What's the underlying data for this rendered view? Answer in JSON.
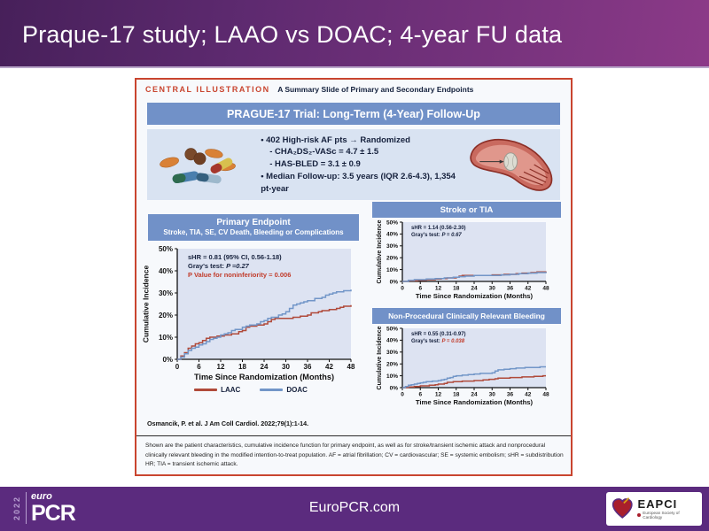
{
  "slide": {
    "title": "Praque-17 study; LAAO vs DOAC; 4-year FU data"
  },
  "central": {
    "label": "CENTRAL ILLUSTRATION",
    "label_suffix": "A Summary Slide of Primary and Secondary Endpoints",
    "main_header": "PRAGUE-17 Trial: Long-Term (4-Year) Follow-Up",
    "bullets": {
      "b1": "• 402 High-risk AF pts → Randomized",
      "b1a": "- CHA₂DS₂-VASc = 4.7 ± 1.5",
      "b1b": "- HAS-BLED = 3.1 ± 0.9",
      "b2": "• Median Follow-up: 3.5  years (IQR 2.6-4.3), 1,354 pt-year"
    },
    "citation": "Osmancik, P. et al. J Am Coll Cardiol. 2022;79(1):1-14.",
    "caption": "Shown are the patient characteristics, cumulative incidence function for primary endpoint, as well as for stroke/transient ischemic attack and nonprocedural clinically relevant bleeding in the modified intention-to-treat population. AF = atrial fibrillation; CV = cardiovascular; SE = systemic embolism; sHR = subdistribution HR; TIA = transient ischemic attack."
  },
  "footer": {
    "year": "2022",
    "logo_top": "euro",
    "logo_main": "PCR",
    "site": "EuroPCR.com",
    "eapci": "EAPCI",
    "eapci_sub": "European Society of Cardiology"
  },
  "colors": {
    "laac": "#b04a3a",
    "doac": "#7296c8",
    "header_bar": "#7191c8",
    "stat_red": "#c13b2a",
    "box_border": "#c9452f",
    "plot_bg": "#dde3f2"
  },
  "chart_data": [
    {
      "id": "primary-endpoint",
      "type": "line",
      "title": "Primary Endpoint",
      "subtitle": "Stroke, TIA, SE, CV Death, Bleeding or Complications",
      "stats": {
        "line1": "sHR = 0.81 (95% CI, 0.56-1.18)",
        "line2_prefix": "Gray's test: ",
        "line2_value": "P =0.27",
        "line3": "P Value for noninferiority = 0.006"
      },
      "xlabel": "Time Since Randomization (Months)",
      "ylabel": "Cumulative Incidence",
      "xlim": [
        0,
        48
      ],
      "ylim": [
        0,
        50
      ],
      "xticks": [
        0,
        6,
        12,
        18,
        24,
        30,
        36,
        42,
        48
      ],
      "yticks": [
        0,
        10,
        20,
        30,
        40,
        50
      ],
      "ytick_suffix": "%",
      "bg": "#dde3f2",
      "legend_position": "bottom",
      "series": [
        {
          "name": "LAAC",
          "color": "#b04a3a",
          "points": [
            [
              0,
              0
            ],
            [
              1,
              1.5
            ],
            [
              2,
              3
            ],
            [
              3,
              5
            ],
            [
              4,
              6
            ],
            [
              5,
              7
            ],
            [
              6,
              7.5
            ],
            [
              7,
              8.5
            ],
            [
              8,
              9.5
            ],
            [
              9,
              10
            ],
            [
              11,
              10.5
            ],
            [
              13,
              11
            ],
            [
              15,
              11.5
            ],
            [
              17,
              12.5
            ],
            [
              18,
              13
            ],
            [
              19,
              14.5
            ],
            [
              20,
              15
            ],
            [
              22,
              15.5
            ],
            [
              24,
              16
            ],
            [
              25,
              17
            ],
            [
              26,
              18
            ],
            [
              27,
              18.5
            ],
            [
              30,
              18.5
            ],
            [
              32,
              19
            ],
            [
              34,
              19.5
            ],
            [
              36,
              20
            ],
            [
              37,
              21
            ],
            [
              39,
              21.5
            ],
            [
              40,
              22
            ],
            [
              42,
              22.5
            ],
            [
              44,
              23
            ],
            [
              45,
              23.5
            ],
            [
              46,
              24
            ],
            [
              48,
              24.5
            ]
          ]
        },
        {
          "name": "DOAC",
          "color": "#7296c8",
          "points": [
            [
              0,
              0
            ],
            [
              1,
              1
            ],
            [
              2,
              2.5
            ],
            [
              3,
              4
            ],
            [
              4,
              5
            ],
            [
              5,
              5.5
            ],
            [
              6,
              6.5
            ],
            [
              7,
              7
            ],
            [
              8,
              8
            ],
            [
              9,
              9
            ],
            [
              10,
              9.5
            ],
            [
              11,
              10
            ],
            [
              12,
              11
            ],
            [
              13,
              11.5
            ],
            [
              14,
              12
            ],
            [
              15,
              13
            ],
            [
              16,
              13.5
            ],
            [
              18,
              14.5
            ],
            [
              19,
              15
            ],
            [
              20,
              15.5
            ],
            [
              22,
              16
            ],
            [
              23,
              17
            ],
            [
              24,
              17.5
            ],
            [
              25,
              18.5
            ],
            [
              26,
              19
            ],
            [
              28,
              20
            ],
            [
              29,
              20.5
            ],
            [
              30,
              21.5
            ],
            [
              31,
              23
            ],
            [
              32,
              24.5
            ],
            [
              33,
              25
            ],
            [
              34,
              25.5
            ],
            [
              35,
              26
            ],
            [
              36,
              26.5
            ],
            [
              38,
              27.5
            ],
            [
              40,
              28
            ],
            [
              41,
              29
            ],
            [
              42,
              29.5
            ],
            [
              43,
              30
            ],
            [
              44,
              30.5
            ],
            [
              46,
              31
            ],
            [
              48,
              31.5
            ]
          ]
        }
      ]
    },
    {
      "id": "stroke-or-tia",
      "type": "line",
      "title": "Stroke or TIA",
      "stats": {
        "line1": "sHR = 1.14 (0.56-2.30)",
        "line2_prefix": "Gray's test: ",
        "line2_value": "P = 0.67"
      },
      "xlabel": "Time Since Randomization (Months)",
      "ylabel": "Cumulative Incidence",
      "xlim": [
        0,
        48
      ],
      "ylim": [
        0,
        50
      ],
      "xticks": [
        0,
        6,
        12,
        18,
        24,
        30,
        36,
        42,
        48
      ],
      "yticks": [
        0,
        10,
        20,
        30,
        40,
        50
      ],
      "ytick_suffix": "%",
      "bg": "#dde3f2",
      "series": [
        {
          "name": "LAAC",
          "color": "#b04a3a",
          "points": [
            [
              0,
              0
            ],
            [
              2,
              0.5
            ],
            [
              5,
              1
            ],
            [
              8,
              1.5
            ],
            [
              11,
              2
            ],
            [
              13,
              2.5
            ],
            [
              15,
              3
            ],
            [
              18,
              3.5
            ],
            [
              19,
              4.5
            ],
            [
              20,
              5
            ],
            [
              26,
              5
            ],
            [
              30,
              5.5
            ],
            [
              34,
              6
            ],
            [
              38,
              6.5
            ],
            [
              40,
              7
            ],
            [
              43,
              7.5
            ],
            [
              45,
              8
            ],
            [
              48,
              8.5
            ]
          ]
        },
        {
          "name": "DOAC",
          "color": "#7296c8",
          "points": [
            [
              0,
              0
            ],
            [
              2,
              1
            ],
            [
              4,
              1.5
            ],
            [
              8,
              2
            ],
            [
              11,
              2.5
            ],
            [
              14,
              3
            ],
            [
              17,
              3.5
            ],
            [
              19,
              4
            ],
            [
              21,
              4.5
            ],
            [
              24,
              5
            ],
            [
              30,
              5
            ],
            [
              33,
              5.5
            ],
            [
              36,
              6
            ],
            [
              39,
              6.5
            ],
            [
              42,
              7
            ],
            [
              45,
              7.5
            ],
            [
              48,
              8
            ]
          ]
        }
      ]
    },
    {
      "id": "non-procedural-bleeding",
      "type": "line",
      "title": "Non-Procedural Clinically Relevant Bleeding",
      "stats": {
        "line1": "sHR = 0.55 (0.31-0.97)",
        "line2_prefix": "Gray's test: ",
        "line2_value": "P = 0.038"
      },
      "xlabel": "Time Since Randomization (Months)",
      "ylabel": "Cumulative Incidence",
      "xlim": [
        0,
        48
      ],
      "ylim": [
        0,
        50
      ],
      "xticks": [
        0,
        6,
        12,
        18,
        24,
        30,
        36,
        42,
        48
      ],
      "yticks": [
        0,
        10,
        20,
        30,
        40,
        50
      ],
      "ytick_suffix": "%",
      "bg": "#dde3f2",
      "series": [
        {
          "name": "LAAC",
          "color": "#b04a3a",
          "points": [
            [
              0,
              0
            ],
            [
              2,
              0.5
            ],
            [
              4,
              1
            ],
            [
              6,
              1.5
            ],
            [
              9,
              2
            ],
            [
              11,
              2.5
            ],
            [
              12,
              3
            ],
            [
              14,
              3.5
            ],
            [
              15,
              4.5
            ],
            [
              17,
              5
            ],
            [
              20,
              5.5
            ],
            [
              24,
              6
            ],
            [
              27,
              6.5
            ],
            [
              29,
              7
            ],
            [
              31,
              7.5
            ],
            [
              32,
              8
            ],
            [
              36,
              8.5
            ],
            [
              40,
              9
            ],
            [
              44,
              9.5
            ],
            [
              47,
              10
            ],
            [
              48,
              10
            ]
          ]
        },
        {
          "name": "DOAC",
          "color": "#7296c8",
          "points": [
            [
              0,
              0
            ],
            [
              1,
              1
            ],
            [
              2,
              2
            ],
            [
              3,
              2.5
            ],
            [
              4,
              3
            ],
            [
              5,
              3.5
            ],
            [
              6,
              4
            ],
            [
              7,
              4.5
            ],
            [
              8,
              5
            ],
            [
              10,
              5.5
            ],
            [
              12,
              6
            ],
            [
              13,
              6.5
            ],
            [
              14,
              7
            ],
            [
              15,
              8
            ],
            [
              16,
              8.5
            ],
            [
              17,
              9.5
            ],
            [
              18,
              10
            ],
            [
              20,
              10.5
            ],
            [
              22,
              11
            ],
            [
              24,
              11.5
            ],
            [
              26,
              12
            ],
            [
              30,
              12.5
            ],
            [
              31,
              14
            ],
            [
              32,
              15
            ],
            [
              34,
              15.5
            ],
            [
              36,
              16
            ],
            [
              38,
              16.5
            ],
            [
              41,
              17
            ],
            [
              44,
              17
            ],
            [
              46,
              17.5
            ],
            [
              48,
              17.5
            ]
          ]
        }
      ]
    }
  ]
}
